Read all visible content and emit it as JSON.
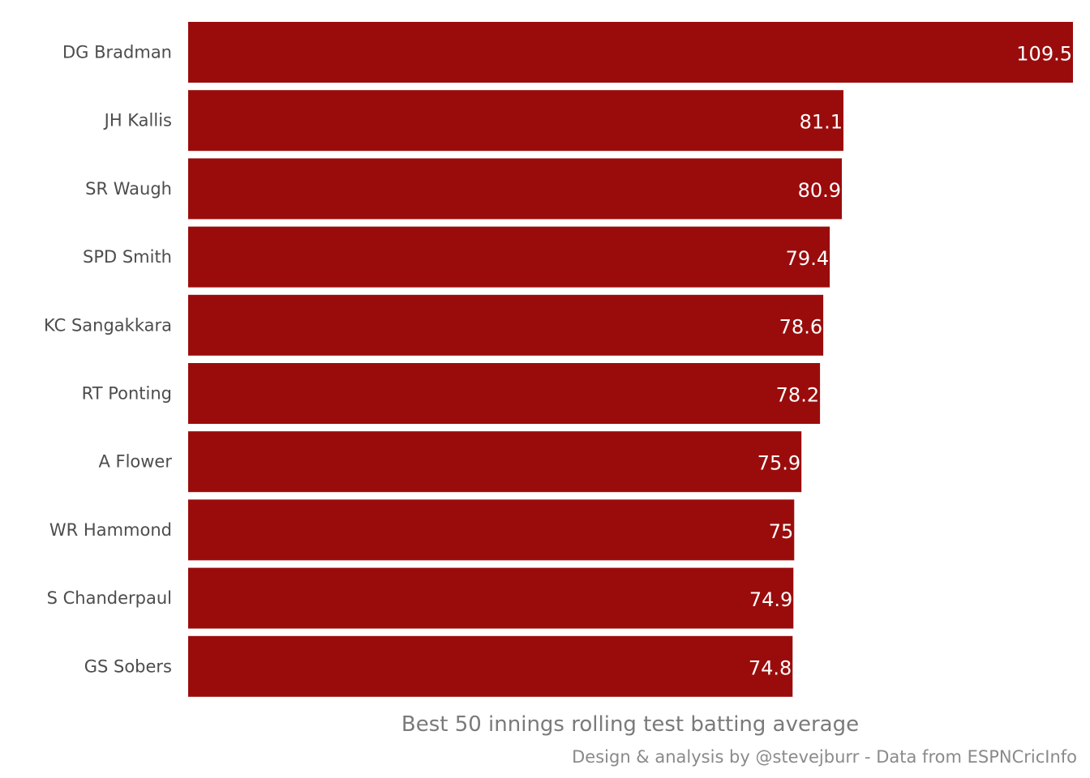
{
  "chart_data": {
    "type": "bar",
    "orientation": "horizontal",
    "categories": [
      "DG Bradman",
      "JH Kallis",
      "SR Waugh",
      "SPD Smith",
      "KC Sangakkara",
      "RT Ponting",
      "A Flower",
      "WR Hammond",
      "S Chanderpaul",
      "GS Sobers"
    ],
    "values": [
      109.5,
      81.1,
      80.9,
      79.4,
      78.6,
      78.2,
      75.9,
      75,
      74.9,
      74.8
    ],
    "value_labels": [
      "109.5",
      "81.1",
      "80.9",
      "79.4",
      "78.6",
      "78.2",
      "75.9",
      "75",
      "74.9",
      "74.8"
    ],
    "title": "",
    "xlabel": "Best 50 innings rolling test batting average",
    "ylabel": "",
    "caption": "Design & analysis by @stevejburr - Data from ESPNCricInfo",
    "xlim": [
      0,
      109.5
    ],
    "grid": false,
    "legend": "none",
    "bar_color": "#9a0c0c",
    "value_label_color": "#ffffff",
    "label_color": "#4d4d4d"
  }
}
